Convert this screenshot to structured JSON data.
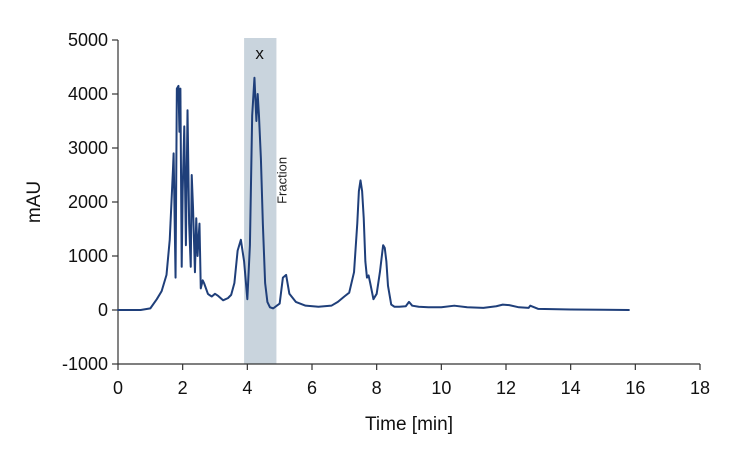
{
  "chart_data": {
    "type": "line",
    "title": "",
    "xlabel": "Time [min]",
    "ylabel": "mAU",
    "xlim": [
      0,
      18
    ],
    "ylim": [
      -1000,
      5000
    ],
    "grid": false,
    "x_ticks": [
      0,
      2,
      4,
      6,
      8,
      10,
      12,
      14,
      16,
      18
    ],
    "y_ticks": [
      -1000,
      0,
      1000,
      2000,
      3000,
      4000,
      5000
    ],
    "x_tick_labels": [
      "0",
      "2",
      "4",
      "6",
      "8",
      "10",
      "12",
      "14",
      "16",
      "18"
    ],
    "y_tick_labels": [
      "-1000",
      "0",
      "1000",
      "2000",
      "3000",
      "4000",
      "5000"
    ],
    "fraction_region": {
      "label": "Fraction",
      "x_start": 3.9,
      "x_end": 4.9,
      "marker": "x",
      "color": "#c9d4dd"
    },
    "series": [
      {
        "color": "#1f3f7a",
        "x": [
          0,
          0.7,
          1.0,
          1.2,
          1.35,
          1.5,
          1.6,
          1.7,
          1.72,
          1.78,
          1.82,
          1.87,
          1.9,
          1.93,
          1.97,
          2.0,
          2.05,
          2.1,
          2.15,
          2.2,
          2.25,
          2.28,
          2.32,
          2.38,
          2.42,
          2.46,
          2.52,
          2.56,
          2.62,
          2.66,
          2.72,
          2.78,
          2.82,
          2.9,
          3.0,
          3.1,
          3.25,
          3.4,
          3.5,
          3.6,
          3.7,
          3.8,
          3.9,
          4.0,
          4.08,
          4.15,
          4.22,
          4.28,
          4.32,
          4.36,
          4.42,
          4.48,
          4.55,
          4.62,
          4.7,
          4.8,
          5.0,
          5.1,
          5.2,
          5.3,
          5.5,
          5.8,
          6.2,
          6.6,
          6.8,
          7.0,
          7.15,
          7.3,
          7.4,
          7.45,
          7.5,
          7.55,
          7.6,
          7.65,
          7.7,
          7.75,
          7.8,
          7.9,
          8.0,
          8.1,
          8.2,
          8.25,
          8.3,
          8.35,
          8.45,
          8.55,
          8.7,
          8.9,
          9.0,
          9.1,
          9.3,
          9.6,
          10.0,
          10.4,
          10.8,
          11.3,
          11.7,
          11.9,
          12.1,
          12.4,
          12.7,
          12.75,
          13.0,
          14.0,
          15.0,
          15.8
        ],
        "values": [
          0,
          0,
          30,
          200,
          350,
          650,
          1300,
          2600,
          2900,
          600,
          4100,
          4150,
          3300,
          4100,
          800,
          2200,
          3400,
          1200,
          3700,
          1600,
          800,
          2500,
          1900,
          700,
          1700,
          1000,
          1600,
          400,
          550,
          500,
          400,
          300,
          280,
          250,
          300,
          260,
          180,
          220,
          280,
          500,
          1100,
          1300,
          900,
          200,
          1200,
          3600,
          4300,
          3500,
          4000,
          3600,
          2800,
          1600,
          500,
          150,
          50,
          30,
          120,
          600,
          650,
          300,
          150,
          80,
          60,
          80,
          150,
          250,
          320,
          700,
          1600,
          2200,
          2400,
          2200,
          1700,
          900,
          600,
          640,
          500,
          200,
          300,
          700,
          1200,
          1150,
          900,
          450,
          100,
          60,
          60,
          70,
          150,
          80,
          60,
          50,
          50,
          80,
          50,
          40,
          70,
          100,
          90,
          50,
          40,
          80,
          20,
          10,
          5,
          0
        ]
      }
    ]
  }
}
